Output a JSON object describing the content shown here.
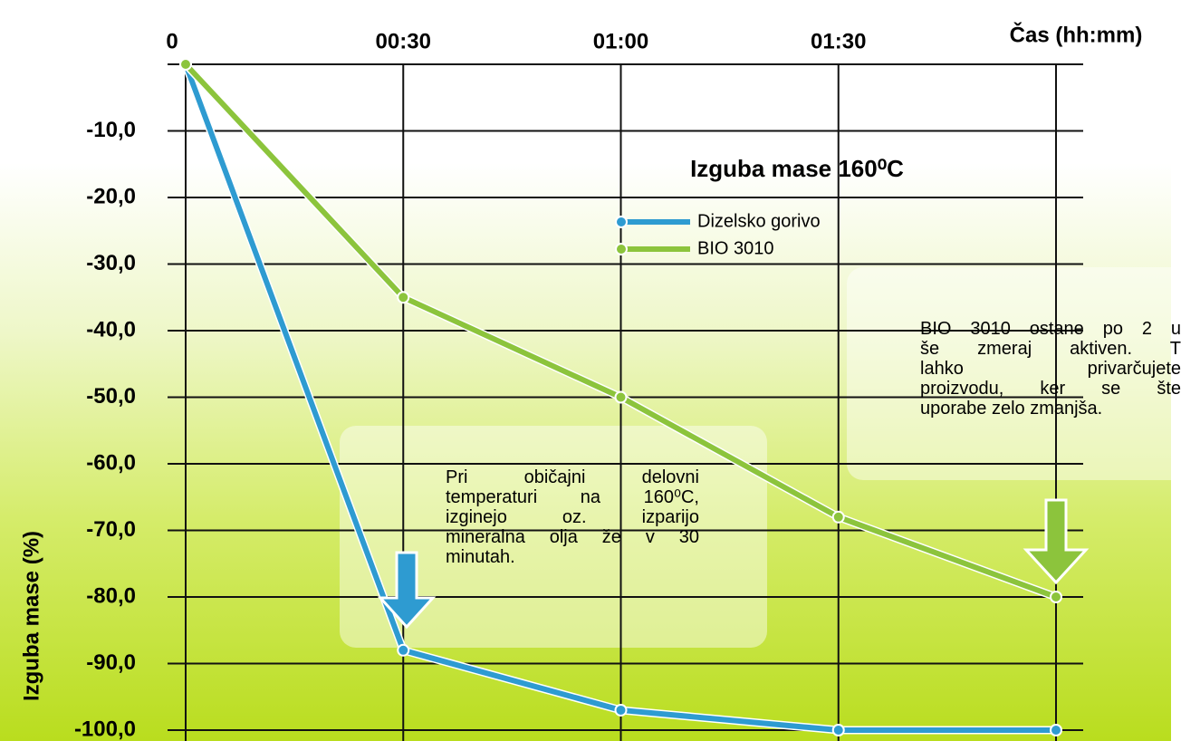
{
  "chart_data": {
    "type": "line",
    "title": "Izguba mase 160⁰C",
    "x_label": "Čas (hh:mm)",
    "y_label": "Izguba mase (%)",
    "categories": [
      "0",
      "00:30",
      "01:00",
      "01:30",
      null
    ],
    "series": [
      {
        "name": "Dizelsko gorivo",
        "color": "#2e9bd1",
        "values": [
          0,
          -88,
          -97,
          -100,
          -100
        ]
      },
      {
        "name": "BIO 3010",
        "color": "#8cc43c",
        "values": [
          0,
          -35,
          -50,
          -68,
          -80
        ]
      }
    ],
    "ylim": [
      -100,
      0
    ],
    "yticks": [
      {
        "value": -100,
        "label": "-100,0"
      },
      {
        "value": -90,
        "label": "-90,0"
      },
      {
        "value": -80,
        "label": "-80,0"
      },
      {
        "value": -70,
        "label": "-70,0"
      },
      {
        "value": -60,
        "label": "-60,0"
      },
      {
        "value": -50,
        "label": "-50,0"
      },
      {
        "value": -40,
        "label": "-40,0"
      },
      {
        "value": -30,
        "label": "-30,0"
      },
      {
        "value": -20,
        "label": "-20,0"
      },
      {
        "value": -10,
        "label": "-10,0"
      }
    ],
    "grid": true,
    "annotations": [
      {
        "lines": [
          "Pri običajni delovni",
          "temperaturi na 160⁰C,",
          "izginejo oz. izparijo",
          "mineralna olja že v 30",
          "minutah."
        ]
      },
      {
        "lines": [
          "BIO 3010 ostane po 2 u",
          "še zmeraj aktiven. T",
          "lahko privarčujete",
          "proizvodu, ker se šte",
          "uporabe zelo zmanjša."
        ]
      }
    ]
  }
}
